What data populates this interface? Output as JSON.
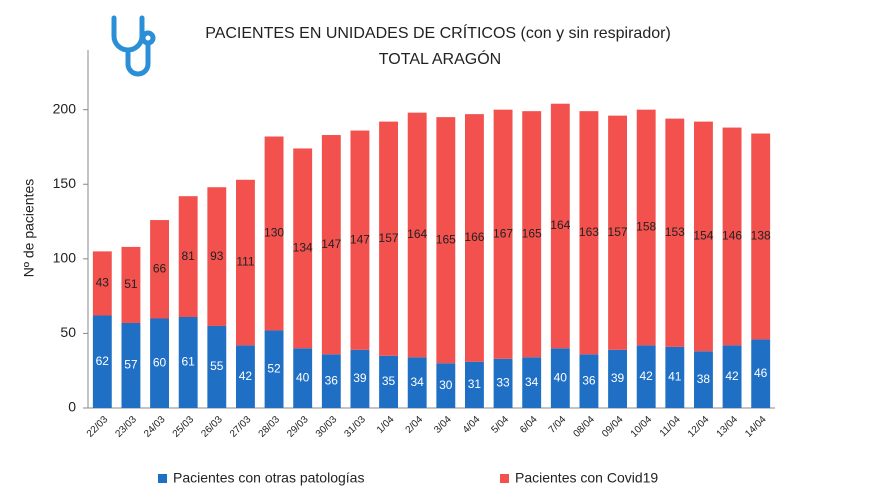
{
  "chart_data": {
    "type": "stacked_bar",
    "title": "PACIENTES EN UNIDADES DE CRÍTICOS (con y sin respirador)",
    "subtitle": "TOTAL ARAGÓN",
    "y_label": "Nº de pacientes",
    "categories": [
      "22/03",
      "23/03",
      "24/03",
      "25/03",
      "26/03",
      "27/03",
      "28/03",
      "29/03",
      "30/03",
      "31/03",
      "1/04",
      "2/04",
      "3/04",
      "4/04",
      "5/04",
      "6/04",
      "7/04",
      "08/04",
      "09/04",
      "10/04",
      "11/04",
      "12/04",
      "13/04",
      "14/04"
    ],
    "series": [
      {
        "name": "Pacientes con otras patologías",
        "color": "#1f6fc4",
        "label_color": "#ffffff",
        "values": [
          62,
          57,
          60,
          61,
          55,
          42,
          52,
          40,
          36,
          39,
          35,
          34,
          30,
          31,
          33,
          34,
          40,
          36,
          39,
          42,
          41,
          38,
          42,
          46
        ]
      },
      {
        "name": "Pacientes con Covid19",
        "color": "#f2514e",
        "label_color": "#222222",
        "values": [
          43,
          51,
          66,
          81,
          93,
          111,
          130,
          134,
          147,
          147,
          157,
          164,
          165,
          166,
          167,
          165,
          164,
          163,
          157,
          158,
          153,
          154,
          146,
          138
        ]
      }
    ],
    "ylim": [
      0,
      240
    ],
    "yticks": [
      0,
      50,
      100,
      150,
      200
    ],
    "grid": false,
    "legend": "bottom"
  }
}
